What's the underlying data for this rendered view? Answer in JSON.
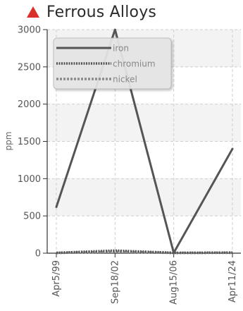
{
  "header": {
    "title": "Ferrous Alloys",
    "status_icon": "warning-triangle-icon",
    "status_color": "#d9302c"
  },
  "chart_data": {
    "type": "line",
    "title": "Ferrous Alloys",
    "xlabel": "",
    "ylabel": "ppm",
    "categories": [
      "Apr5/99",
      "Sep18/02",
      "Aug15/06",
      "Apr11/24"
    ],
    "ylim": [
      0,
      3000
    ],
    "yticks": [
      0,
      500,
      1000,
      1500,
      2000,
      2500,
      3000
    ],
    "grid": true,
    "legend_position": "top-left",
    "series": [
      {
        "name": "iron",
        "values": [
          620,
          3000,
          5,
          1400
        ],
        "color": "#555555",
        "style": "solid"
      },
      {
        "name": "chromium",
        "values": [
          5,
          35,
          5,
          8
        ],
        "color": "#555555",
        "style": "dotted"
      },
      {
        "name": "nickel",
        "values": [
          3,
          20,
          3,
          5
        ],
        "color": "#8a8a8a",
        "style": "dashed"
      }
    ]
  }
}
